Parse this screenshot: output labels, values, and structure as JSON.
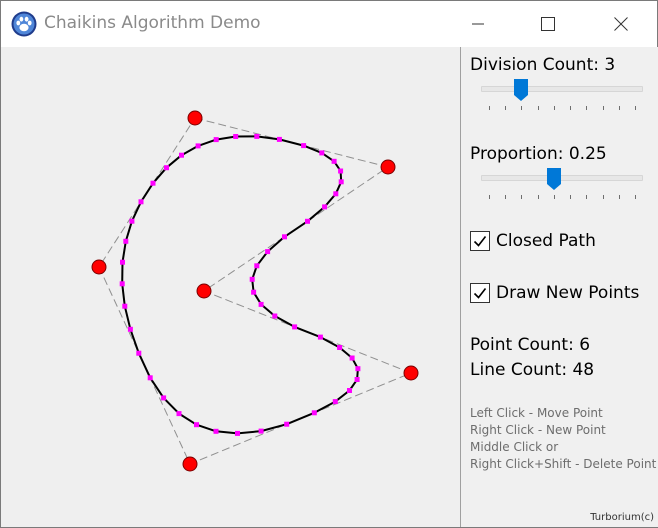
{
  "window": {
    "title": "Chaikins Algorithm Demo",
    "icon": "paw-icon"
  },
  "panel": {
    "division_label": "Division Count: 3",
    "division_value": 3,
    "division_min": 1,
    "division_max": 10,
    "proportion_label": "Proportion: 0.25",
    "proportion_value": 0.25,
    "proportion_min": 0.05,
    "proportion_max": 0.5,
    "closed_path_label": "Closed Path",
    "closed_path_checked": true,
    "draw_new_points_label": "Draw New Points",
    "draw_new_points_checked": true,
    "point_count": "Point Count: 6",
    "line_count": "Line Count: 48",
    "help": [
      "Left Click - Move Point",
      "Right Click - New Point",
      "Middle Click or",
      "Right Click+Shift - Delete Point"
    ],
    "credit": "Turborium(c)"
  },
  "colors": {
    "control_point": "#ff0000",
    "new_point": "#ff00ff",
    "curve": "#000000",
    "control_polygon": "#909090",
    "accent": "#0078d7"
  }
}
